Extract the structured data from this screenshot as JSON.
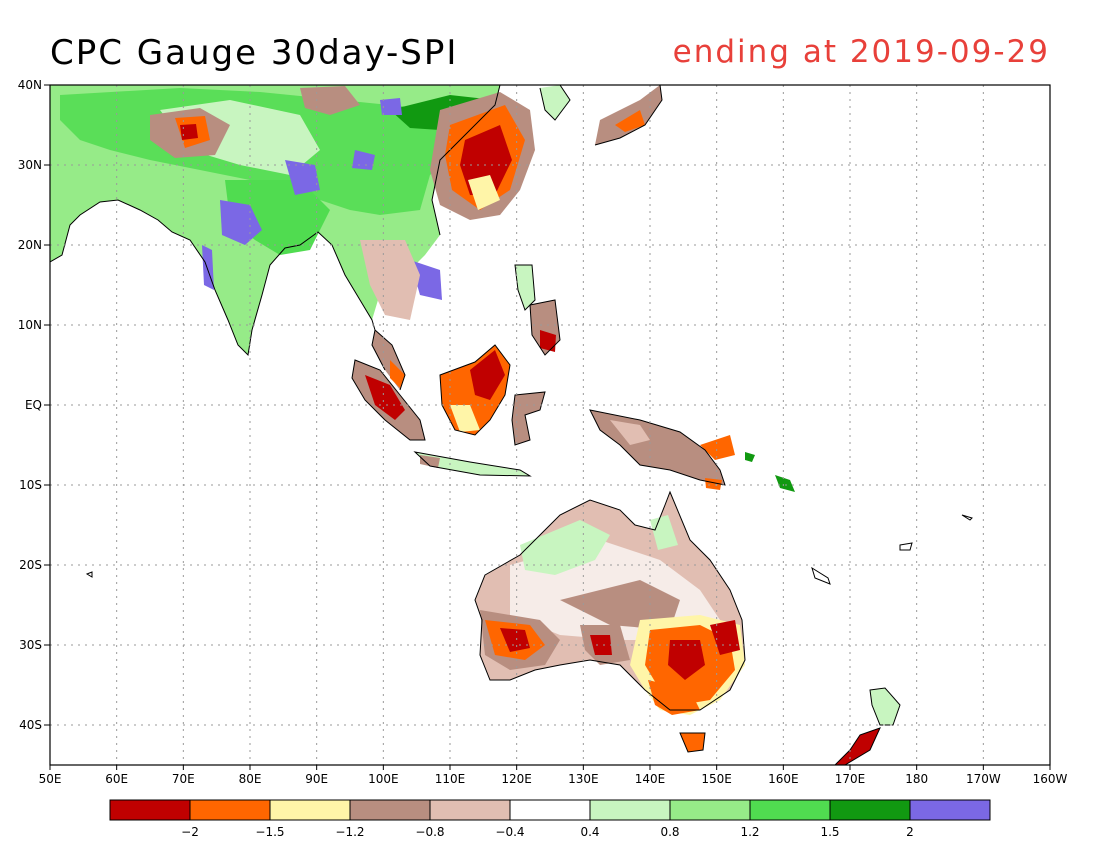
{
  "title": "CPC Gauge 30day-SPI",
  "subtitle": "ending at 2019-09-29",
  "colors": {
    "title": "#000000",
    "subtitle": "#e8403a",
    "coast": "#000000",
    "grid": "#9a9a9a"
  },
  "map": {
    "lon_range": [
      50,
      200
    ],
    "lat_range": [
      -45,
      40
    ],
    "lat_labels": [
      {
        "text": "40N",
        "lat": 40
      },
      {
        "text": "30N",
        "lat": 30
      },
      {
        "text": "20N",
        "lat": 20
      },
      {
        "text": "10N",
        "lat": 10
      },
      {
        "text": "EQ",
        "lat": 0
      },
      {
        "text": "10S",
        "lat": -10
      },
      {
        "text": "20S",
        "lat": -20
      },
      {
        "text": "30S",
        "lat": -30
      },
      {
        "text": "40S",
        "lat": -40
      }
    ],
    "lon_labels": [
      {
        "text": "50E",
        "lon": 50
      },
      {
        "text": "60E",
        "lon": 60
      },
      {
        "text": "70E",
        "lon": 70
      },
      {
        "text": "80E",
        "lon": 80
      },
      {
        "text": "90E",
        "lon": 90
      },
      {
        "text": "100E",
        "lon": 100
      },
      {
        "text": "110E",
        "lon": 110
      },
      {
        "text": "120E",
        "lon": 120
      },
      {
        "text": "130E",
        "lon": 130
      },
      {
        "text": "140E",
        "lon": 140
      },
      {
        "text": "150E",
        "lon": 150
      },
      {
        "text": "160E",
        "lon": 160
      },
      {
        "text": "170E",
        "lon": 170
      },
      {
        "text": "180",
        "lon": 180
      },
      {
        "text": "170W",
        "lon": 190
      },
      {
        "text": "160W",
        "lon": 200
      }
    ]
  },
  "legend": {
    "colors": [
      "#c00000",
      "#ff6600",
      "#fff5a8",
      "#b88e80",
      "#e1beb2",
      "#ffffff",
      "#c8f5c0",
      "#96eb88",
      "#50dc50",
      "#119911",
      "#7b68e5"
    ],
    "labels": [
      "-2",
      "-1.5",
      "-1.2",
      "-0.8",
      "-0.4",
      "0.4",
      "0.8",
      "1.2",
      "1.5",
      "2"
    ]
  }
}
